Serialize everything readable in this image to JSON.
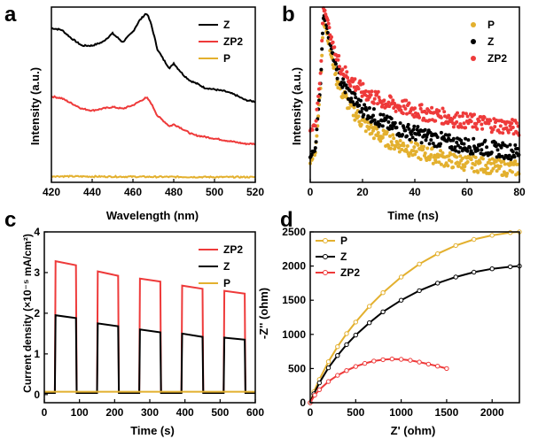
{
  "panels": {
    "a": {
      "letter": "a"
    },
    "b": {
      "letter": "b"
    },
    "c": {
      "letter": "c"
    },
    "d": {
      "letter": "d"
    }
  },
  "chart_data": [
    {
      "id": "a",
      "type": "line",
      "xlabel": "Wavelength (nm)",
      "ylabel": "Intensity (a.u.)",
      "xlim": [
        420,
        520
      ],
      "ylim": [
        0,
        1
      ],
      "y_ticks_hidden": true,
      "xticks": [
        420,
        440,
        460,
        480,
        500,
        520
      ],
      "legend_position": "top-right",
      "series": [
        {
          "name": "Z",
          "color": "#000000",
          "x": [
            420,
            425,
            430,
            435,
            440,
            445,
            450,
            455,
            460,
            463,
            466,
            467,
            469,
            472,
            475,
            478,
            480,
            482,
            485,
            488,
            490,
            492,
            495,
            500,
            505,
            510,
            515,
            520
          ],
          "y": [
            0.88,
            0.87,
            0.82,
            0.78,
            0.78,
            0.8,
            0.85,
            0.8,
            0.86,
            0.92,
            0.96,
            0.96,
            0.9,
            0.76,
            0.7,
            0.65,
            0.68,
            0.65,
            0.61,
            0.58,
            0.57,
            0.56,
            0.54,
            0.53,
            0.52,
            0.5,
            0.47,
            0.46
          ]
        },
        {
          "name": "ZP2",
          "color": "#ee3a3a",
          "x": [
            420,
            425,
            430,
            435,
            440,
            445,
            450,
            455,
            460,
            463,
            466,
            467,
            469,
            472,
            475,
            478,
            480,
            482,
            485,
            488,
            490,
            495,
            500,
            505,
            510,
            515,
            520
          ],
          "y": [
            0.49,
            0.48,
            0.45,
            0.42,
            0.41,
            0.42,
            0.43,
            0.42,
            0.44,
            0.46,
            0.48,
            0.48,
            0.45,
            0.38,
            0.35,
            0.32,
            0.33,
            0.32,
            0.3,
            0.28,
            0.27,
            0.26,
            0.25,
            0.24,
            0.23,
            0.22,
            0.22
          ]
        },
        {
          "name": "P",
          "color": "#e3b02e",
          "x": [
            420,
            440,
            460,
            480,
            500,
            520
          ],
          "y": [
            0.035,
            0.033,
            0.032,
            0.031,
            0.03,
            0.03
          ]
        }
      ]
    },
    {
      "id": "b",
      "type": "scatter",
      "xlabel": "Time (ns)",
      "ylabel": "Intensity (a.u.)",
      "xlim": [
        0,
        80
      ],
      "ylim": [
        0,
        1
      ],
      "y_ticks_hidden": true,
      "xticks": [
        0,
        20,
        40,
        60,
        80
      ],
      "legend_position": "top-right",
      "series": [
        {
          "name": "P",
          "color": "#e3b02e",
          "x": [
            0,
            2,
            4,
            5,
            6,
            8,
            10,
            12,
            15,
            18,
            20,
            25,
            30,
            35,
            40,
            45,
            50,
            55,
            60,
            65,
            70,
            75,
            80
          ],
          "y": [
            0.12,
            0.18,
            0.55,
            0.92,
            0.88,
            0.72,
            0.6,
            0.52,
            0.44,
            0.38,
            0.34,
            0.28,
            0.24,
            0.21,
            0.18,
            0.16,
            0.14,
            0.12,
            0.11,
            0.1,
            0.09,
            0.08,
            0.08
          ]
        },
        {
          "name": "Z",
          "color": "#000000",
          "x": [
            0,
            2,
            4,
            5,
            6,
            8,
            10,
            12,
            15,
            18,
            20,
            25,
            30,
            35,
            40,
            45,
            50,
            55,
            60,
            65,
            70,
            75,
            80
          ],
          "y": [
            0.14,
            0.2,
            0.58,
            0.95,
            0.92,
            0.76,
            0.65,
            0.57,
            0.5,
            0.45,
            0.42,
            0.37,
            0.33,
            0.3,
            0.28,
            0.26,
            0.24,
            0.22,
            0.21,
            0.2,
            0.19,
            0.18,
            0.17
          ]
        },
        {
          "name": "ZP2",
          "color": "#ee3a3a",
          "x": [
            0,
            2,
            4,
            5,
            6,
            8,
            10,
            12,
            15,
            18,
            20,
            25,
            30,
            35,
            40,
            45,
            50,
            55,
            60,
            65,
            70,
            75,
            80
          ],
          "y": [
            0.3,
            0.33,
            0.62,
            1.0,
            0.97,
            0.82,
            0.72,
            0.65,
            0.59,
            0.55,
            0.52,
            0.48,
            0.45,
            0.43,
            0.41,
            0.39,
            0.38,
            0.36,
            0.35,
            0.34,
            0.33,
            0.32,
            0.31
          ]
        }
      ]
    },
    {
      "id": "c",
      "type": "line",
      "xlabel": "Time (s)",
      "ylabel": "Current density (×10⁻⁵ mA/cm²)",
      "xlim": [
        0,
        600
      ],
      "ylim": [
        -0.2,
        4
      ],
      "xticks": [
        0,
        100,
        200,
        300,
        400,
        500,
        600
      ],
      "yticks": [
        0,
        1,
        2,
        3,
        4
      ],
      "legend_position": "top-right",
      "light_on_intervals": [
        [
          30,
          90
        ],
        [
          150,
          210
        ],
        [
          270,
          330
        ],
        [
          390,
          450
        ],
        [
          510,
          570
        ]
      ],
      "series": [
        {
          "name": "ZP2",
          "color": "#ee3a3a",
          "baseline": 0.06,
          "plateau_start": [
            3.28,
            3.03,
            2.85,
            2.68,
            2.55
          ],
          "plateau_end": [
            3.18,
            2.92,
            2.78,
            2.6,
            2.48
          ]
        },
        {
          "name": "Z",
          "color": "#000000",
          "baseline": 0.04,
          "plateau_start": [
            1.95,
            1.75,
            1.6,
            1.5,
            1.4
          ],
          "plateau_end": [
            1.88,
            1.68,
            1.53,
            1.42,
            1.35
          ]
        },
        {
          "name": "P",
          "color": "#e3b02e",
          "baseline": 0.07,
          "plateau_start": [
            0.07,
            0.07,
            0.07,
            0.07,
            0.07
          ],
          "plateau_end": [
            0.07,
            0.07,
            0.07,
            0.07,
            0.07
          ]
        }
      ]
    },
    {
      "id": "d",
      "type": "line",
      "xlabel": "Z' (ohm)",
      "ylabel": "-Z'' (ohm)",
      "xlim": [
        0,
        2300
      ],
      "ylim": [
        0,
        2500
      ],
      "xticks": [
        0,
        500,
        1000,
        1500,
        2000
      ],
      "yticks": [
        0,
        500,
        1000,
        1500,
        2000,
        2500
      ],
      "legend_position": "top-left",
      "series": [
        {
          "name": "P",
          "color": "#e3b02e",
          "marker": "circle",
          "x": [
            0,
            40,
            100,
            200,
            300,
            400,
            500,
            650,
            800,
            1000,
            1200,
            1400,
            1600,
            1800,
            2000,
            2200,
            2300
          ],
          "y": [
            0,
            160,
            340,
            600,
            820,
            1010,
            1180,
            1410,
            1610,
            1840,
            2030,
            2180,
            2300,
            2390,
            2450,
            2490,
            2500
          ]
        },
        {
          "name": "Z",
          "color": "#000000",
          "marker": "circle",
          "x": [
            0,
            40,
            100,
            200,
            300,
            400,
            500,
            650,
            800,
            1000,
            1200,
            1400,
            1600,
            1800,
            2000,
            2200,
            2300
          ],
          "y": [
            0,
            130,
            290,
            510,
            690,
            850,
            990,
            1170,
            1330,
            1500,
            1640,
            1750,
            1840,
            1910,
            1960,
            1990,
            2000
          ]
        },
        {
          "name": "ZP2",
          "color": "#ee3a3a",
          "marker": "circle",
          "x": [
            0,
            50,
            100,
            200,
            300,
            400,
            500,
            600,
            700,
            800,
            900,
            1000,
            1100,
            1200,
            1300,
            1400,
            1500
          ],
          "y": [
            0,
            110,
            190,
            310,
            400,
            470,
            530,
            575,
            610,
            630,
            640,
            635,
            620,
            595,
            565,
            535,
            500
          ]
        }
      ]
    }
  ]
}
